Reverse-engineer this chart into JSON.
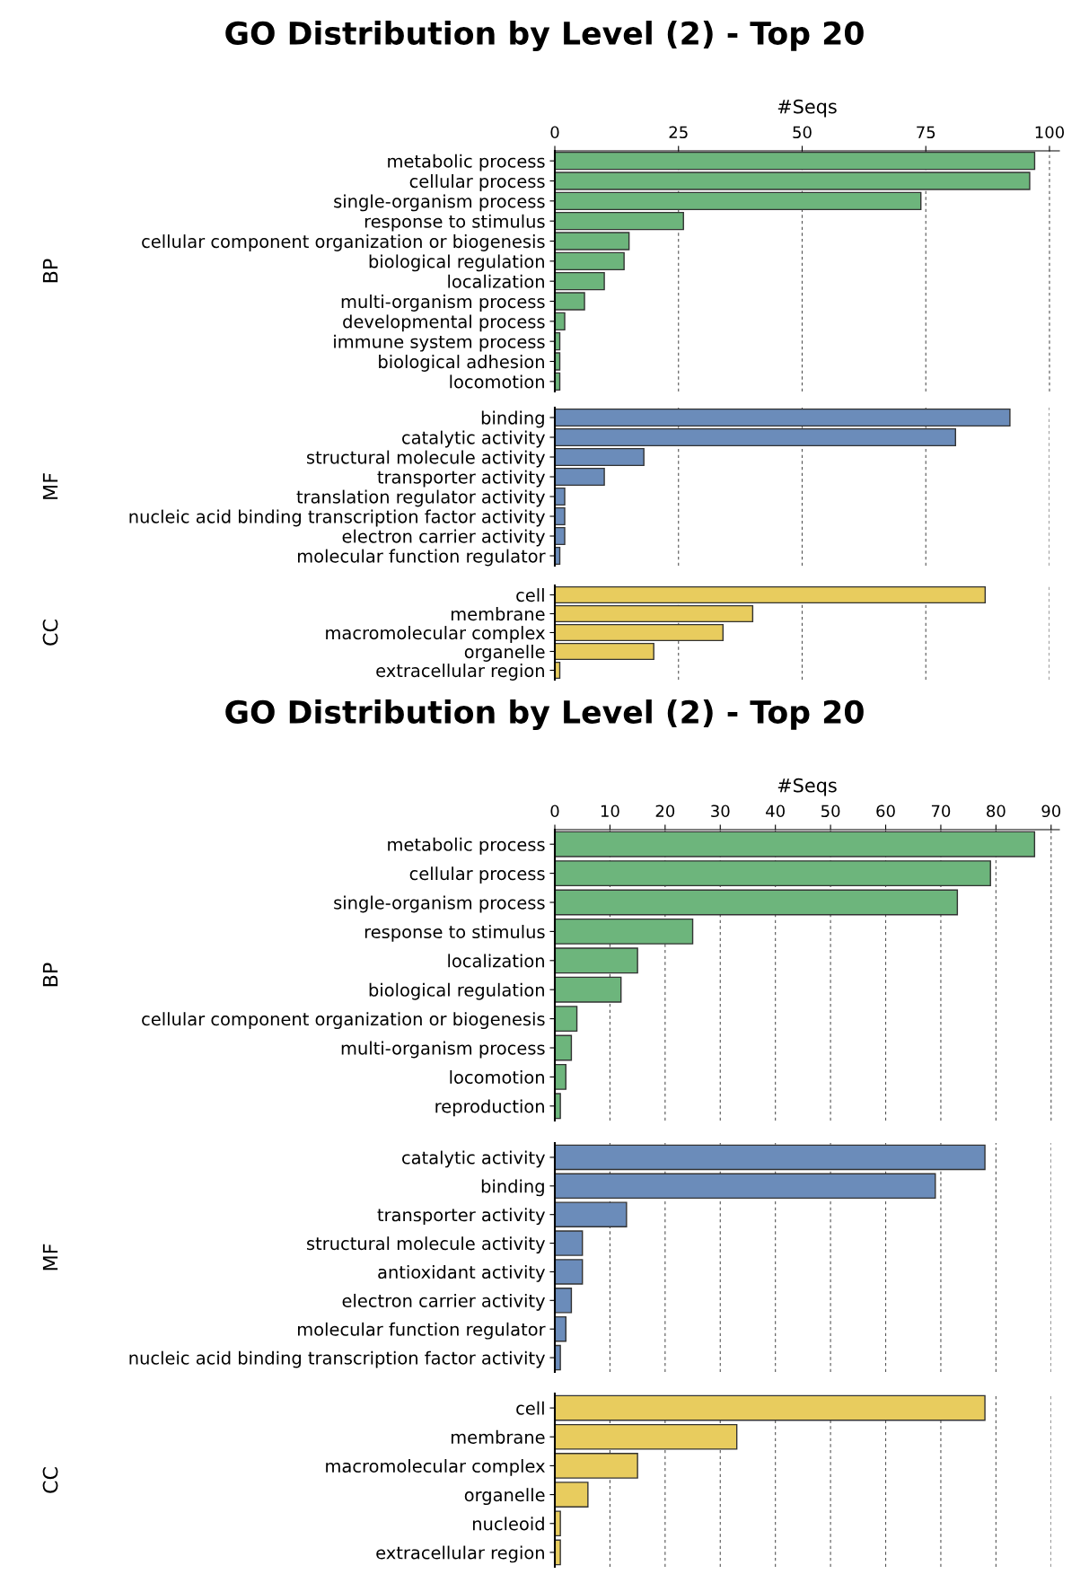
{
  "chart_data": [
    {
      "type": "bar",
      "orientation": "horizontal",
      "title": "GO Distribution by Level (2) - Top 20",
      "xlabel": "#Seqs",
      "ylabel": "BP",
      "categories": [
        "metabolic process",
        "cellular process",
        "single-organism process",
        "response to stimulus",
        "cellular component organization or biogenesis",
        "biological regulation",
        "localization",
        "multi-organism process",
        "developmental process",
        "immune system process",
        "biological adhesion",
        "locomotion"
      ],
      "values": [
        97,
        96,
        74,
        26,
        15,
        14,
        10,
        6,
        2,
        1,
        1,
        1
      ],
      "color": "#6db57c",
      "xlim": [
        0,
        102
      ],
      "xticks": [
        0,
        25,
        50,
        75,
        100
      ],
      "grid": "x"
    },
    {
      "type": "bar",
      "orientation": "horizontal",
      "ylabel": "MF",
      "categories": [
        "binding",
        "catalytic activity",
        "structural molecule activity",
        "transporter activity",
        "translation regulator activity",
        "nucleic acid binding transcription factor activity",
        "electron carrier activity",
        "molecular function regulator"
      ],
      "values": [
        92,
        81,
        18,
        10,
        2,
        2,
        2,
        1
      ],
      "color": "#6b8cba",
      "xlim": [
        0,
        100
      ],
      "xticks": [
        0,
        25,
        50,
        75,
        100
      ],
      "grid": "x",
      "tick_labels": "y"
    },
    {
      "type": "bar",
      "orientation": "horizontal",
      "ylabel": "CC",
      "categories": [
        "cell",
        "membrane",
        "macromolecular complex",
        "organelle",
        "extracellular region"
      ],
      "values": [
        87,
        40,
        34,
        20,
        1
      ],
      "color": "#e8cc5e",
      "xlim": [
        0,
        100
      ],
      "xticks": [
        0,
        25,
        50,
        75,
        100
      ],
      "grid": "x",
      "tick_labels": "y"
    },
    {
      "type": "bar",
      "orientation": "horizontal",
      "title": "GO Distribution by Level (2) - Top 20",
      "xlabel": "#Seqs",
      "ylabel": "BP",
      "categories": [
        "metabolic process",
        "cellular process",
        "single-organism process",
        "response to stimulus",
        "localization",
        "biological regulation",
        "cellular component organization or biogenesis",
        "multi-organism process",
        "locomotion",
        "reproduction"
      ],
      "values": [
        87,
        79,
        73,
        25,
        15,
        12,
        4,
        3,
        2,
        1
      ],
      "color": "#6db57c",
      "xlim": [
        0,
        91.5
      ],
      "xticks": [
        0,
        10,
        20,
        30,
        40,
        50,
        60,
        70,
        80,
        90
      ],
      "grid": "x"
    },
    {
      "type": "bar",
      "orientation": "horizontal",
      "ylabel": "MF",
      "categories": [
        "catalytic activity",
        "binding",
        "transporter activity",
        "structural molecule activity",
        "antioxidant activity",
        "electron carrier activity",
        "molecular function regulator",
        "nucleic acid binding transcription factor activity"
      ],
      "values": [
        78,
        69,
        13,
        5,
        5,
        3,
        2,
        1
      ],
      "color": "#6b8cba",
      "xlim": [
        0,
        90
      ],
      "xticks": [
        0,
        10,
        20,
        30,
        40,
        50,
        60,
        70,
        80,
        90
      ],
      "grid": "x",
      "tick_labels": "y"
    },
    {
      "type": "bar",
      "orientation": "horizontal",
      "ylabel": "CC",
      "categories": [
        "cell",
        "membrane",
        "macromolecular complex",
        "organelle",
        "nucleoid",
        "extracellular region"
      ],
      "values": [
        78,
        33,
        15,
        6,
        1,
        1
      ],
      "color": "#e8cc5e",
      "xlim": [
        0,
        90
      ],
      "xticks": [
        0,
        10,
        20,
        30,
        40,
        50,
        60,
        70,
        80,
        90
      ],
      "grid": "x",
      "tick_labels": "y"
    }
  ]
}
